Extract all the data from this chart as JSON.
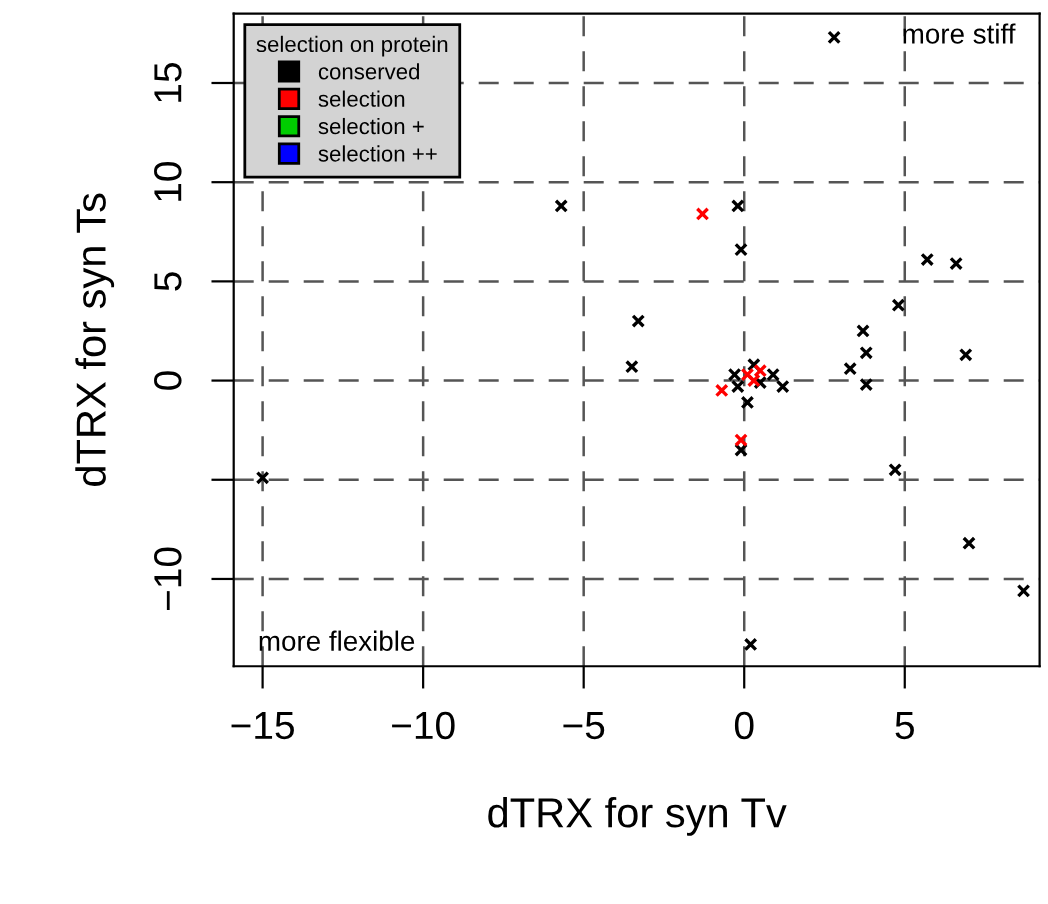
{
  "chart_data": {
    "type": "scatter",
    "xlabel": "dTRX for syn Tv",
    "ylabel": "dTRX for syn Ts",
    "legend_title": "selection on protein",
    "xlim": [
      -15.9,
      9.2
    ],
    "ylim": [
      -14.4,
      18.5
    ],
    "xticks": [
      -15,
      -10,
      -5,
      0,
      5
    ],
    "yticks": [
      -10,
      {
        "value": -5,
        "label": null
      },
      0,
      5,
      10,
      15
    ],
    "grid": true,
    "legend": "top left",
    "marker": "cross",
    "annotations": [
      "more stiff",
      "more flexible"
    ],
    "series": [
      {
        "name": "conserved",
        "color": "#000000",
        "x": [
          2.8,
          -0.2,
          -0.1,
          5.7,
          6.6,
          4.8,
          -3.3,
          -3.5,
          3.7,
          3.8,
          6.9,
          3.3,
          3.8,
          4.7,
          7.0,
          8.7,
          0.2,
          -0.1,
          0.1,
          1.2,
          0.9,
          -0.3,
          0.3,
          null,
          -0.2,
          0.5,
          -5.7,
          -15.0
        ],
        "values": [
          17.3,
          8.8,
          6.6,
          6.1,
          5.9,
          3.8,
          3.0,
          0.7,
          2.5,
          1.4,
          1.3,
          0.6,
          -0.2,
          -4.5,
          -8.2,
          -10.6,
          -13.3,
          -3.5,
          -1.1,
          -0.3,
          0.3,
          0.3,
          0.8,
          null,
          -0.3,
          -0.1,
          8.8,
          -4.9
        ]
      },
      {
        "name": "selection",
        "color": "#ff0000",
        "x": [
          -1.3,
          -0.1,
          -0.7,
          0.1,
          0.3,
          0.5,
          null
        ],
        "values": [
          8.4,
          -3.0,
          -0.5,
          0.3,
          0.0,
          0.5,
          null
        ]
      },
      {
        "name": "selection +",
        "color": "#00cd00"
      },
      {
        "name": "selection ++",
        "color": "#0000ff"
      }
    ]
  }
}
